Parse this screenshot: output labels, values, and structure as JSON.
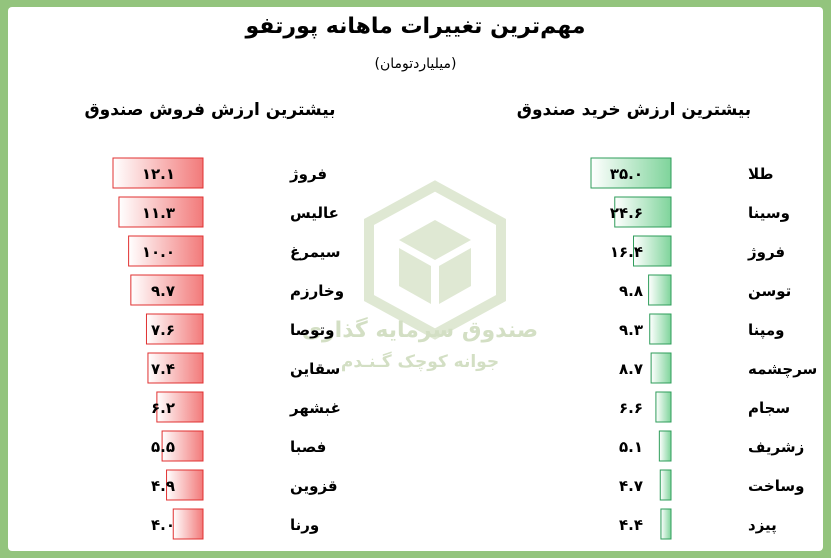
{
  "header": {
    "title": "مهم‌ترین تغییرات ماهانه پورتفو",
    "subtitle": "(میلیاردتومان)"
  },
  "watermark": {
    "line1": "صندوق سرمایه گذاری",
    "line2": "جوانه کوچک گـنـدم"
  },
  "colors": {
    "background": "#93c47d",
    "buy_bar": "#7fd49b",
    "buy_border": "#2e9c5a",
    "sell_bar": "#f27a7a",
    "sell_border": "#e03030"
  },
  "chart_data": [
    {
      "type": "bar",
      "orientation": "horizontal",
      "title": "بیشترین ارزش فروش صندوق",
      "categories": [
        "فروژ",
        "عالیس",
        "سیمرغ",
        "وخارزم",
        "وتوصا",
        "سقاین",
        "غبشهر",
        "فصبا",
        "قزوین",
        "ورنا"
      ],
      "values": [
        12.1,
        11.3,
        10.0,
        9.7,
        7.6,
        7.4,
        6.2,
        5.5,
        4.9,
        4.0
      ],
      "value_labels": [
        "۱۲.۱",
        "۱۱.۳",
        "۱۰.۰",
        "۹.۷",
        "۷.۶",
        "۷.۴",
        "۶.۲",
        "۵.۵",
        "۴.۹",
        "۴.۰"
      ],
      "color": "#f27a7a"
    },
    {
      "type": "bar",
      "orientation": "horizontal",
      "title": "بیشترین ارزش خرید صندوق",
      "categories": [
        "طلا",
        "وسینا",
        "فروژ",
        "توسن",
        "ومپنا",
        "سرچشمه",
        "سجام",
        "زشریف",
        "وساخت",
        "پیزد"
      ],
      "values": [
        35.0,
        24.6,
        16.4,
        9.8,
        9.3,
        8.7,
        6.6,
        5.1,
        4.7,
        4.4
      ],
      "value_labels": [
        "۳۵.۰",
        "۲۴.۶",
        "۱۶.۴",
        "۹.۸",
        "۹.۳",
        "۸.۷",
        "۶.۶",
        "۵.۱",
        "۴.۷",
        "۴.۴"
      ],
      "color": "#7fd49b"
    }
  ]
}
